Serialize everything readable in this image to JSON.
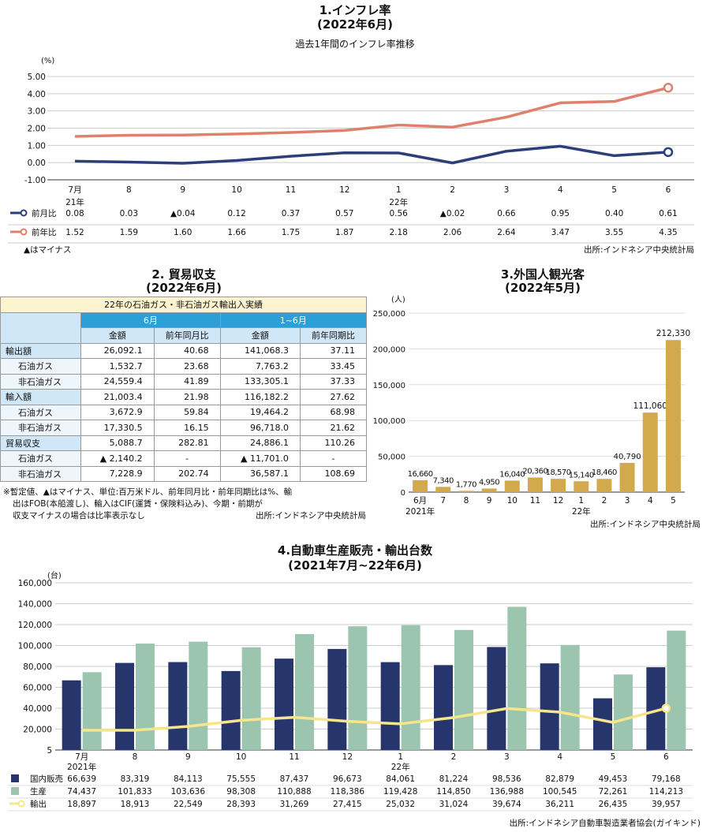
{
  "inflation": {
    "title": "1.インフレ率",
    "title2": "(2022年6月)",
    "subtitle": "過去1年間のインフレ率推移",
    "unit": "(%)",
    "note": "▲はマイナス",
    "source": "出所:インドネシア中央統計局",
    "colors": {
      "mom": "#2d3e7a",
      "yoy": "#e0806c"
    }
  },
  "trade": {
    "title": "2. 貿易収支",
    "title2": "(2022年6月)",
    "caption": "22年の石油ガス・非石油ガス輸出入実績",
    "group_june": "6月",
    "group_ytd": "1~6月",
    "col_amount": "金額",
    "col_yoy_month": "前年同月比",
    "col_yoy_period": "前年同期比",
    "rows": [
      {
        "label": "輸出額",
        "sub": false,
        "v1": "26,092.1",
        "v2": "40.68",
        "v3": "141,068.3",
        "v4": "37.11"
      },
      {
        "label": "石油ガス",
        "sub": true,
        "v1": "1,532.7",
        "v2": "23.68",
        "v3": "7,763.2",
        "v4": "33.45"
      },
      {
        "label": "非石油ガス",
        "sub": true,
        "v1": "24,559.4",
        "v2": "41.89",
        "v3": "133,305.1",
        "v4": "37.33"
      },
      {
        "label": "輸入額",
        "sub": false,
        "v1": "21,003.4",
        "v2": "21.98",
        "v3": "116,182.2",
        "v4": "27.62"
      },
      {
        "label": "石油ガス",
        "sub": true,
        "v1": "3,672.9",
        "v2": "59.84",
        "v3": "19,464.2",
        "v4": "68.98"
      },
      {
        "label": "非石油ガス",
        "sub": true,
        "v1": "17,330.5",
        "v2": "16.15",
        "v3": "96,718.0",
        "v4": "21.62"
      },
      {
        "label": "貿易収支",
        "sub": false,
        "v1": "5,088.7",
        "v2": "282.81",
        "v3": "24,886.1",
        "v4": "110.26"
      },
      {
        "label": "石油ガス",
        "sub": true,
        "v1": "▲ 2,140.2",
        "v2": "-",
        "v3": "▲ 11,701.0",
        "v4": "-"
      },
      {
        "label": "非石油ガス",
        "sub": true,
        "v1": "7,228.9",
        "v2": "202.74",
        "v3": "36,587.1",
        "v4": "108.69"
      }
    ],
    "note1": "※暫定値、▲はマイナス、単位:百万米ドル、前年同月比・前年同期比は%、輸",
    "note2": "出はFOB(本船渡し)、輸入はCIF(運賃・保険料込み)、今期・前期が",
    "note3": "収支マイナスの場合は比率表示なし",
    "source": "出所:インドネシア中央統計局"
  },
  "tourists": {
    "title": "3.外国人観光客",
    "title2": "(2022年5月)",
    "unit": "(人)",
    "source": "出所:インドネシア中央統計局",
    "year_labels": [
      "2021年",
      "22年"
    ],
    "colors": {
      "bar": "#d2a94d"
    }
  },
  "autos": {
    "title": "4.自動車生産販売・輸出台数",
    "title2": "(2021年7月~22年6月)",
    "unit": "(台)",
    "source": "出所:インドネシア自動車製造業者協会(ガイキンド)",
    "year_labels": [
      "2021年",
      "22年"
    ],
    "colors": {
      "domestic": "#26366d",
      "production": "#9cc5b0",
      "export": "#f7e58c"
    }
  },
  "chart_data": [
    {
      "type": "line",
      "ylim": [
        -1,
        5
      ],
      "yticks": [
        "5.00",
        "4.00",
        "3.00",
        "2.00",
        "1.00",
        "0.00",
        "-1.00"
      ],
      "categories": [
        "7月",
        "8",
        "9",
        "10",
        "11",
        "12",
        "1",
        "2",
        "3",
        "4",
        "5",
        "6"
      ],
      "category_years": [
        "21年",
        "",
        "",
        "",
        "",
        "",
        "22年",
        "",
        "",
        "",
        "",
        ""
      ],
      "series": [
        {
          "name": "前月比",
          "values": [
            0.08,
            0.03,
            -0.04,
            0.12,
            0.37,
            0.57,
            0.56,
            -0.02,
            0.66,
            0.95,
            0.4,
            0.61
          ],
          "labels": [
            "0.08",
            "0.03",
            "▲0.04",
            "0.12",
            "0.37",
            "0.57",
            "0.56",
            "▲0.02",
            "0.66",
            "0.95",
            "0.40",
            "0.61"
          ]
        },
        {
          "name": "前年比",
          "values": [
            1.52,
            1.59,
            1.6,
            1.66,
            1.75,
            1.87,
            2.18,
            2.06,
            2.64,
            3.47,
            3.55,
            4.35
          ],
          "labels": [
            "1.52",
            "1.59",
            "1.60",
            "1.66",
            "1.75",
            "1.87",
            "2.18",
            "2.06",
            "2.64",
            "3.47",
            "3.55",
            "4.35"
          ]
        }
      ]
    },
    {
      "type": "bar",
      "ylim": [
        0,
        250000
      ],
      "yticks": [
        "250,000",
        "200,000",
        "150,000",
        "100,000",
        "50,000",
        "0"
      ],
      "categories": [
        "6月",
        "7",
        "8",
        "9",
        "10",
        "11",
        "12",
        "1",
        "2",
        "3",
        "4",
        "5"
      ],
      "values": [
        16660,
        7340,
        1770,
        4950,
        16040,
        20360,
        18570,
        15140,
        18460,
        40790,
        111060,
        212330
      ],
      "labels": [
        "16,660",
        "7,340",
        "1,770",
        "4,950",
        "16,040",
        "20,360",
        "18,570",
        "15,140",
        "18,460",
        "40,790",
        "111,060",
        "212,330"
      ]
    },
    {
      "type": "bar",
      "ylim": [
        0,
        160000
      ],
      "yticks": [
        "160,000",
        "140,000",
        "120,000",
        "100,000",
        "80,000",
        "60,000",
        "40,000",
        "20,000",
        "5"
      ],
      "categories": [
        "7月",
        "8",
        "9",
        "10",
        "11",
        "12",
        "1",
        "2",
        "3",
        "4",
        "5",
        "6"
      ],
      "series": [
        {
          "name": "国内販売",
          "values": [
            66639,
            83319,
            84113,
            75555,
            87437,
            96673,
            84061,
            81224,
            98536,
            82879,
            49453,
            79168
          ],
          "labels": [
            "66,639",
            "83,319",
            "84,113",
            "75,555",
            "87,437",
            "96,673",
            "84,061",
            "81,224",
            "98,536",
            "82,879",
            "49,453",
            "79,168"
          ]
        },
        {
          "name": "生産",
          "values": [
            74437,
            101833,
            103636,
            98308,
            110888,
            118386,
            119428,
            114850,
            136988,
            100545,
            72261,
            114213
          ],
          "labels": [
            "74,437",
            "101,833",
            "103,636",
            "98,308",
            "110,888",
            "118,386",
            "119,428",
            "114,850",
            "136,988",
            "100,545",
            "72,261",
            "114,213"
          ]
        },
        {
          "name": "輸出",
          "type": "line",
          "values": [
            18897,
            18913,
            22549,
            28393,
            31269,
            27415,
            25032,
            31024,
            39674,
            36211,
            26435,
            39957
          ],
          "labels": [
            "18,897",
            "18,913",
            "22,549",
            "28,393",
            "31,269",
            "27,415",
            "25,032",
            "31,024",
            "39,674",
            "36,211",
            "26,435",
            "39,957"
          ]
        }
      ]
    }
  ]
}
